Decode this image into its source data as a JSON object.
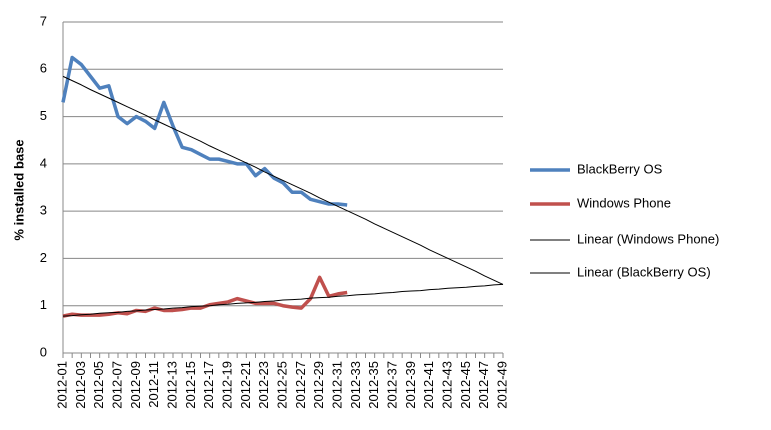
{
  "chart_data": {
    "type": "line",
    "y_label": "% installed base",
    "categories": [
      "2012-01",
      null,
      "2012-03",
      null,
      "2012-05",
      null,
      "2012-07",
      null,
      "2012-09",
      null,
      "2012-11",
      null,
      "2012-13",
      null,
      "2012-15",
      null,
      "2012-17",
      null,
      "2012-19",
      null,
      "2012-21",
      null,
      "2012-23",
      null,
      "2012-25",
      null,
      "2012-27",
      null,
      "2012-29",
      null,
      "2012-31",
      null,
      "2012-33",
      null,
      "2012-35",
      null,
      "2012-37",
      null,
      "2012-39",
      null,
      "2012-41",
      null,
      "2012-43",
      null,
      "2012-45",
      null,
      "2012-47",
      null,
      "2012-49"
    ],
    "ylim": [
      0,
      7
    ],
    "yticks": [
      0,
      1,
      2,
      3,
      4,
      5,
      6,
      7
    ],
    "grid": true,
    "legend": "right",
    "series": [
      {
        "name": "BlackBerry OS",
        "color": "#4f81bd",
        "width": 3.5,
        "values": [
          5.3,
          6.25,
          6.1,
          5.85,
          5.6,
          5.65,
          5.0,
          4.85,
          5.0,
          4.9,
          4.75,
          5.3,
          4.8,
          4.35,
          4.3,
          4.2,
          4.1,
          4.1,
          4.05,
          4.0,
          4.0,
          3.75,
          3.9,
          3.7,
          3.6,
          3.4,
          3.4,
          3.25,
          3.2,
          3.15,
          3.15,
          3.13,
          null,
          null,
          null,
          null,
          null,
          null,
          null,
          null,
          null,
          null,
          null,
          null,
          null,
          null,
          null,
          null,
          null
        ]
      },
      {
        "name": "Windows Phone",
        "color": "#c0504d",
        "width": 3.5,
        "values": [
          0.78,
          0.82,
          0.8,
          0.8,
          0.8,
          0.82,
          0.85,
          0.83,
          0.9,
          0.88,
          0.95,
          0.9,
          0.9,
          0.92,
          0.95,
          0.95,
          1.02,
          1.05,
          1.08,
          1.15,
          1.1,
          1.05,
          1.05,
          1.05,
          1.0,
          0.97,
          0.95,
          1.15,
          1.6,
          1.2,
          1.25,
          1.28,
          null,
          null,
          null,
          null,
          null,
          null,
          null,
          null,
          null,
          null,
          null,
          null,
          null,
          null,
          null,
          null,
          null
        ]
      },
      {
        "name": "Linear (Windows Phone)",
        "color": "#000000",
        "width": 1,
        "values": [
          0.78,
          0.79,
          0.81,
          0.82,
          0.84,
          0.85,
          0.86,
          0.88,
          0.89,
          0.91,
          0.92,
          0.93,
          0.95,
          0.96,
          0.98,
          0.99,
          1.0,
          1.02,
          1.03,
          1.05,
          1.06,
          1.07,
          1.09,
          1.1,
          1.12,
          1.13,
          1.14,
          1.16,
          1.17,
          1.18,
          1.2,
          1.21,
          1.23,
          1.24,
          1.25,
          1.27,
          1.28,
          1.3,
          1.31,
          1.32,
          1.34,
          1.35,
          1.37,
          1.38,
          1.39,
          1.41,
          1.42,
          1.44,
          1.45
        ]
      },
      {
        "name": "Linear (BlackBerry OS)",
        "color": "#000000",
        "width": 1,
        "values": [
          5.85,
          5.76,
          5.67,
          5.57,
          5.48,
          5.39,
          5.3,
          5.21,
          5.12,
          5.03,
          4.93,
          4.84,
          4.75,
          4.66,
          4.57,
          4.48,
          4.38,
          4.29,
          4.2,
          4.11,
          4.02,
          3.93,
          3.83,
          3.74,
          3.65,
          3.56,
          3.47,
          3.38,
          3.28,
          3.19,
          3.1,
          3.01,
          2.92,
          2.83,
          2.73,
          2.64,
          2.55,
          2.46,
          2.37,
          2.28,
          2.18,
          2.09,
          2.0,
          1.91,
          1.82,
          1.73,
          1.63,
          1.54,
          1.45
        ]
      }
    ]
  }
}
